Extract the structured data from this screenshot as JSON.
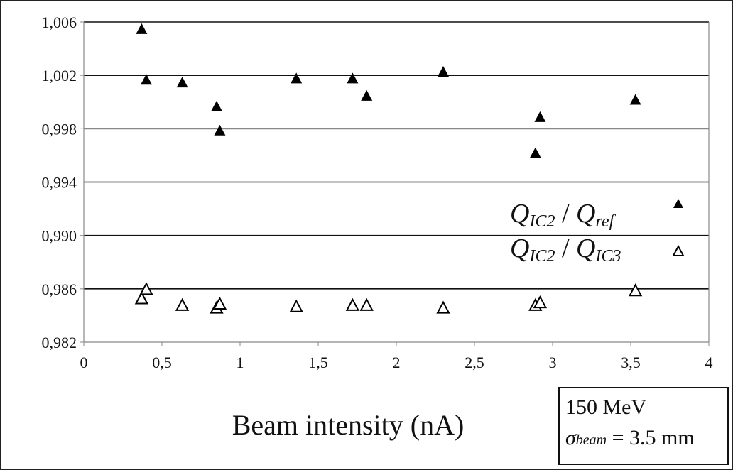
{
  "chart_data": {
    "type": "scatter",
    "xlabel": "Beam intensity (nA)",
    "xlim": [
      0,
      4
    ],
    "ylim": [
      0.982,
      1.006
    ],
    "x_ticks": [
      0,
      0.5,
      1,
      1.5,
      2,
      2.5,
      3,
      3.5,
      4
    ],
    "x_tick_labels": [
      "0",
      "0,5",
      "1",
      "1,5",
      "2",
      "2,5",
      "3",
      "3,5",
      "4"
    ],
    "y_ticks": [
      0.982,
      0.986,
      0.99,
      0.994,
      0.998,
      1.002,
      1.006
    ],
    "y_tick_labels": [
      "0,982",
      "0,986",
      "0,990",
      "0,994",
      "0,998",
      "1,002",
      "1,006"
    ],
    "grid": "horizontal",
    "legend_position": "right",
    "series": [
      {
        "name": "Q_IC2 / Q_ref",
        "marker": "filled-triangle",
        "color": "#000000",
        "points": [
          [
            0.37,
            1.0055
          ],
          [
            0.4,
            1.0017
          ],
          [
            0.63,
            1.0015
          ],
          [
            0.85,
            0.9997
          ],
          [
            0.87,
            0.9979
          ],
          [
            1.36,
            1.0018
          ],
          [
            1.72,
            1.0018
          ],
          [
            1.81,
            1.0005
          ],
          [
            2.3,
            1.0023
          ],
          [
            2.89,
            0.9962
          ],
          [
            2.92,
            0.9989
          ],
          [
            3.53,
            1.0002
          ]
        ]
      },
      {
        "name": "Q_IC2 / Q_IC3",
        "marker": "open-triangle",
        "color": "#000000",
        "points": [
          [
            0.37,
            0.9853
          ],
          [
            0.4,
            0.986
          ],
          [
            0.63,
            0.9848
          ],
          [
            0.85,
            0.9846
          ],
          [
            0.87,
            0.9849
          ],
          [
            1.36,
            0.9847
          ],
          [
            1.72,
            0.9848
          ],
          [
            1.81,
            0.9848
          ],
          [
            2.3,
            0.9846
          ],
          [
            2.89,
            0.9848
          ],
          [
            2.92,
            0.985
          ],
          [
            3.53,
            0.9859
          ]
        ]
      }
    ]
  },
  "legend": {
    "series1": {
      "q": "Q",
      "sub1": "IC2",
      "slash": " / ",
      "q2": "Q",
      "sub2": "ref"
    },
    "series2": {
      "q": "Q",
      "sub1": "IC2",
      "slash": " / ",
      "q2": "Q",
      "sub2": "IC3"
    }
  },
  "info_box": {
    "energy": "150 MeV",
    "sigma_symbol": "σ",
    "sigma_sub": "beam",
    "sigma_value": " = 3.5 mm"
  }
}
